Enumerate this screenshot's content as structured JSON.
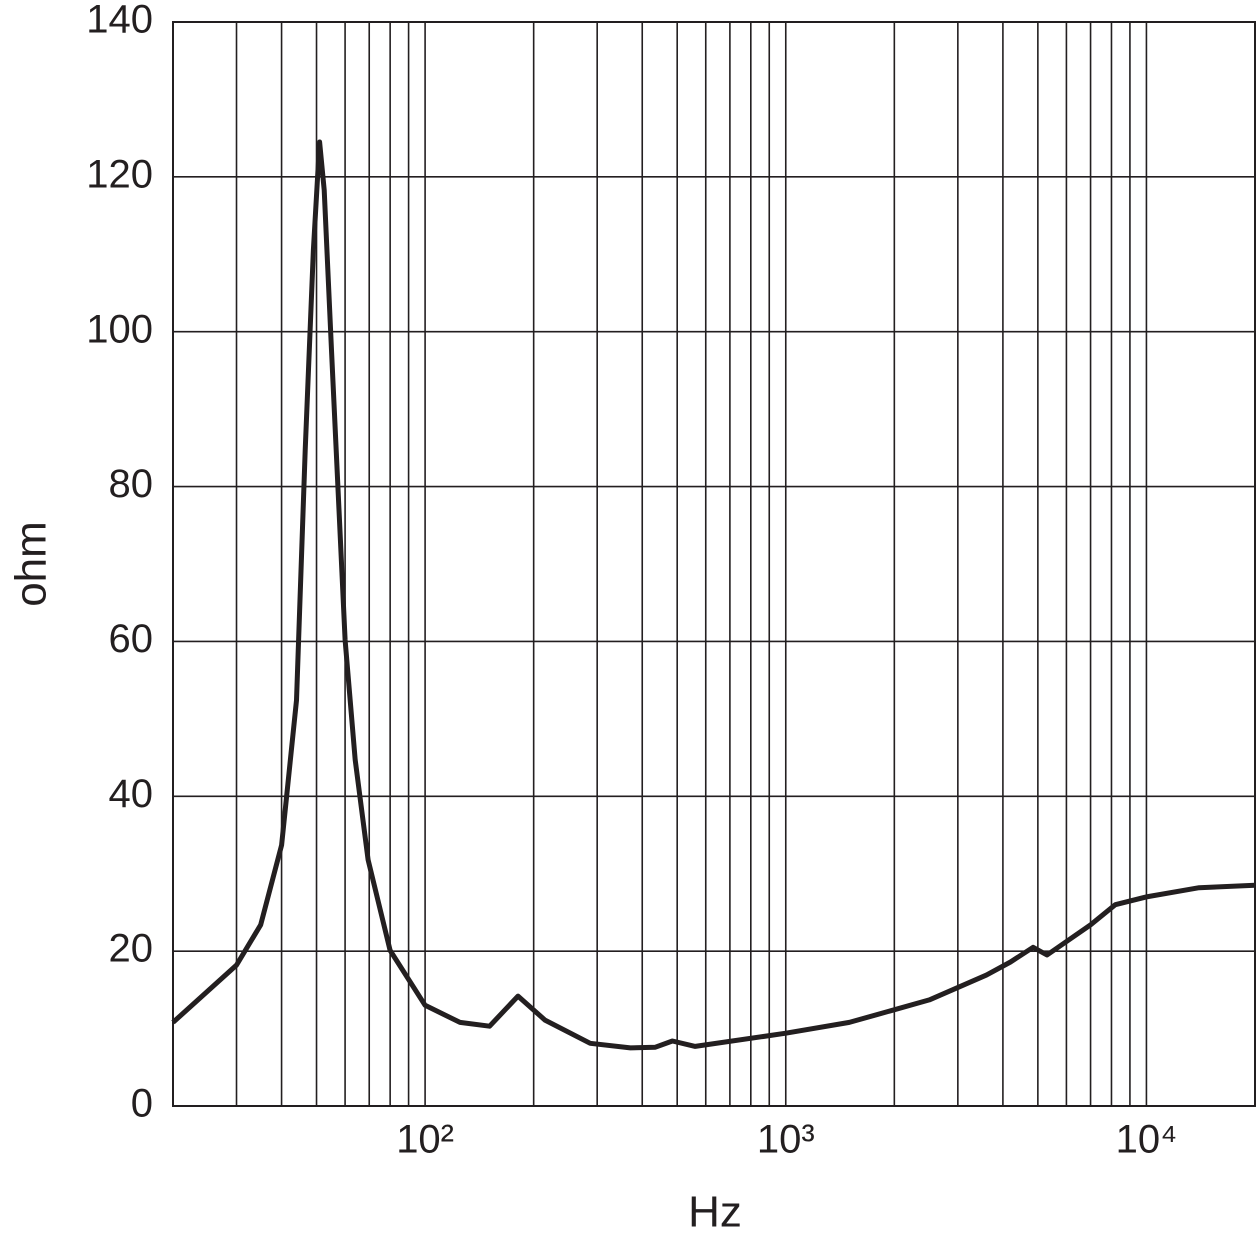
{
  "chart_data": {
    "type": "line",
    "x_label": "Hz",
    "y_label": "ohm",
    "x_log": true,
    "grid": true,
    "x": [
      20,
      30,
      35,
      40,
      44,
      46.5,
      49,
      51,
      52.5,
      55,
      60,
      64,
      69.5,
      80,
      100,
      125,
      151,
      181,
      215,
      287,
      371,
      435,
      485,
      561,
      1000,
      1500,
      2500,
      3600,
      4200,
      4850,
      5300,
      7000,
      8200,
      10000,
      14000,
      20000
    ],
    "series": [
      {
        "color": "#231f20",
        "values": [
          10.8,
          18.2,
          23.4,
          33.7,
          52.4,
          84.7,
          110.6,
          124.5,
          118.3,
          97.6,
          60.2,
          44.7,
          31.8,
          20.1,
          13,
          10.8,
          10.3,
          14.2,
          11.1,
          8.1,
          7.5,
          7.6,
          8.4,
          7.7,
          9.4,
          10.8,
          13.7,
          16.9,
          18.6,
          20.5,
          19.5,
          23.4,
          26,
          27,
          28.2,
          28.5
        ]
      }
    ],
    "xlim": [
      20,
      20000
    ],
    "ylim": [
      0,
      140
    ],
    "xticks": [
      {
        "value": 100,
        "label": "10²"
      },
      {
        "value": 1000,
        "label": "10³"
      },
      {
        "value": 10000,
        "label": "10⁴"
      }
    ],
    "x_minor_ticks": [
      30,
      40,
      50,
      60,
      70,
      80,
      90,
      200,
      300,
      400,
      500,
      600,
      700,
      800,
      900,
      2000,
      3000,
      4000,
      5000,
      6000,
      7000,
      8000,
      9000
    ],
    "yticks": [
      0,
      20,
      40,
      60,
      80,
      100,
      120,
      140
    ]
  }
}
